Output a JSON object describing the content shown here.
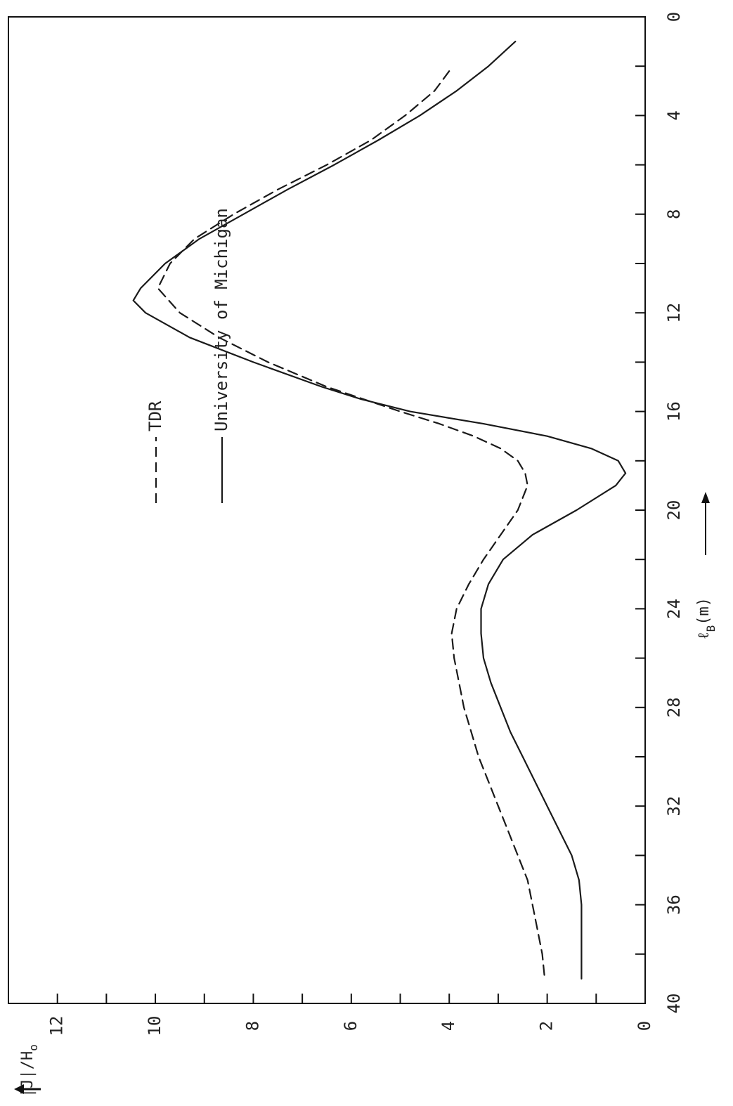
{
  "chart_data": {
    "type": "line",
    "xlabel": "ℓB (m)",
    "xlabel_main": "ℓ",
    "xlabel_sub": "B",
    "xlabel_unit": "(m)",
    "ylabel": "|J|/Ho",
    "ylabel_main": "|J|/H",
    "ylabel_sub": "o",
    "xlim": [
      0,
      40
    ],
    "ylim": [
      0,
      13
    ],
    "x_ticks": [
      0,
      4,
      8,
      12,
      16,
      20,
      24,
      28,
      32,
      36,
      40
    ],
    "y_ticks": [
      0,
      2,
      4,
      6,
      8,
      10,
      12
    ],
    "x_minor_step": 2,
    "y_minor_step": 1,
    "orientation": "rotated-90",
    "series": [
      {
        "name": "TDR",
        "style": "dashed",
        "color": "#1a1a1a",
        "x": [
          2.2,
          3,
          4,
          5,
          6,
          7,
          8,
          9,
          10,
          11,
          12,
          13,
          14,
          15,
          16,
          16.5,
          17,
          17.5,
          18,
          18.5,
          19,
          20,
          21,
          22,
          23,
          24,
          25,
          26,
          27,
          28,
          29,
          30,
          31,
          32,
          33,
          34,
          35,
          36,
          37,
          38,
          39
        ],
        "y": [
          4.0,
          4.3,
          4.9,
          5.6,
          6.5,
          7.5,
          8.4,
          9.2,
          9.7,
          9.95,
          9.5,
          8.7,
          7.7,
          6.5,
          5.0,
          4.2,
          3.5,
          2.95,
          2.6,
          2.45,
          2.4,
          2.6,
          2.95,
          3.3,
          3.6,
          3.85,
          3.95,
          3.9,
          3.8,
          3.7,
          3.55,
          3.4,
          3.2,
          3.0,
          2.8,
          2.6,
          2.4,
          2.3,
          2.2,
          2.1,
          2.05
        ]
      },
      {
        "name": "University of Michigan",
        "style": "solid",
        "color": "#1a1a1a",
        "x": [
          1,
          2,
          3,
          4,
          5,
          6,
          7,
          8,
          9,
          10,
          11,
          11.5,
          12,
          13,
          14,
          15,
          15.5,
          16,
          16.5,
          17,
          17.5,
          18,
          18.5,
          19,
          20,
          21,
          22,
          23,
          24,
          25,
          26,
          27,
          28,
          29,
          30,
          31,
          32,
          33,
          34,
          35,
          36,
          37,
          38,
          39
        ],
        "y": [
          2.65,
          3.2,
          3.85,
          4.6,
          5.45,
          6.35,
          7.3,
          8.2,
          9.1,
          9.8,
          10.3,
          10.45,
          10.2,
          9.3,
          8.0,
          6.6,
          5.8,
          4.8,
          3.3,
          2.0,
          1.1,
          0.55,
          0.4,
          0.6,
          1.4,
          2.3,
          2.9,
          3.2,
          3.35,
          3.35,
          3.3,
          3.15,
          2.95,
          2.75,
          2.5,
          2.25,
          2.0,
          1.75,
          1.5,
          1.35,
          1.3,
          1.3,
          1.3,
          1.3
        ]
      }
    ]
  }
}
